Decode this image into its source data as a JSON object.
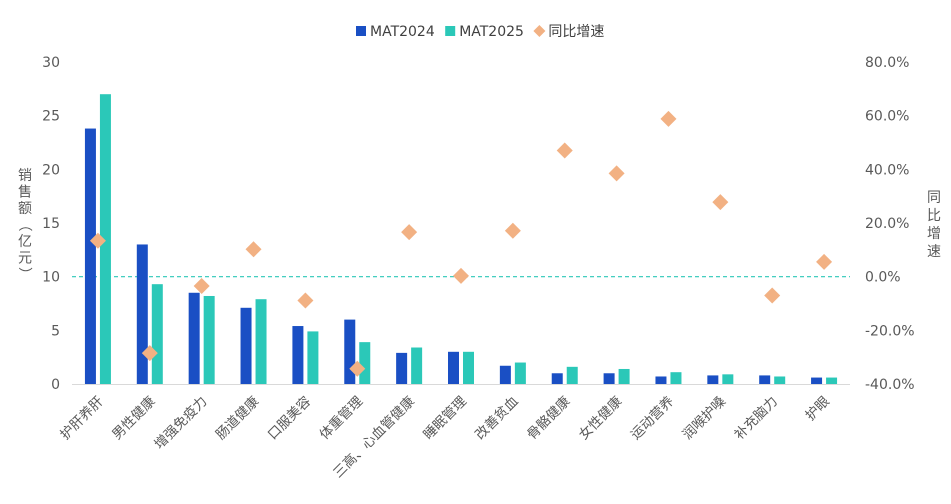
{
  "chart_data": {
    "type": "bar",
    "title": "",
    "categories": [
      "护肝养肝",
      "男性健康",
      "增强免疫力",
      "肠道健康",
      "口服美容",
      "体重管理",
      "三高、心血管健康",
      "睡眠管理",
      "改善贫血",
      "骨骼健康",
      "女性健康",
      "运动营养",
      "润喉护嗓",
      "补充脑力",
      "护眼"
    ],
    "series": [
      {
        "name": "MAT2024",
        "kind": "bar",
        "axis": "left",
        "color": "#1A4FC4",
        "values": [
          23.8,
          13.0,
          8.5,
          7.1,
          5.4,
          6.0,
          2.9,
          3.0,
          1.7,
          1.0,
          1.0,
          0.7,
          0.8,
          0.8,
          0.6
        ]
      },
      {
        "name": "MAT2025",
        "kind": "bar",
        "axis": "left",
        "color": "#2BC8B8",
        "values": [
          27.0,
          9.3,
          8.2,
          7.9,
          4.9,
          3.9,
          3.4,
          3.0,
          2.0,
          1.6,
          1.4,
          1.1,
          0.9,
          0.7,
          0.6
        ]
      },
      {
        "name": "同比增速",
        "kind": "scatter",
        "axis": "right",
        "color": "#F2B183",
        "values": [
          13.4,
          -28.5,
          -3.5,
          10.2,
          -8.9,
          -34.3,
          16.6,
          0.3,
          17.1,
          47.0,
          38.5,
          58.8,
          27.8,
          -7.0,
          5.5
        ]
      }
    ],
    "ylabel": "销售额（亿元）",
    "y2label": "同比增速",
    "ylim": [
      0,
      30
    ],
    "yticks": [
      "0",
      "5",
      "10",
      "15",
      "20",
      "25",
      "30"
    ],
    "y2lim": [
      -40,
      80
    ],
    "y2ticks": [
      "-40.0%",
      "-20.0%",
      "0.0%",
      "20.0%",
      "40.0%",
      "60.0%",
      "80.0%"
    ],
    "reference_line": {
      "axis": "right",
      "value": 0,
      "style": "dashed",
      "color": "#2BC8B8"
    },
    "legend": {
      "position": "top-center"
    },
    "grid": false
  }
}
